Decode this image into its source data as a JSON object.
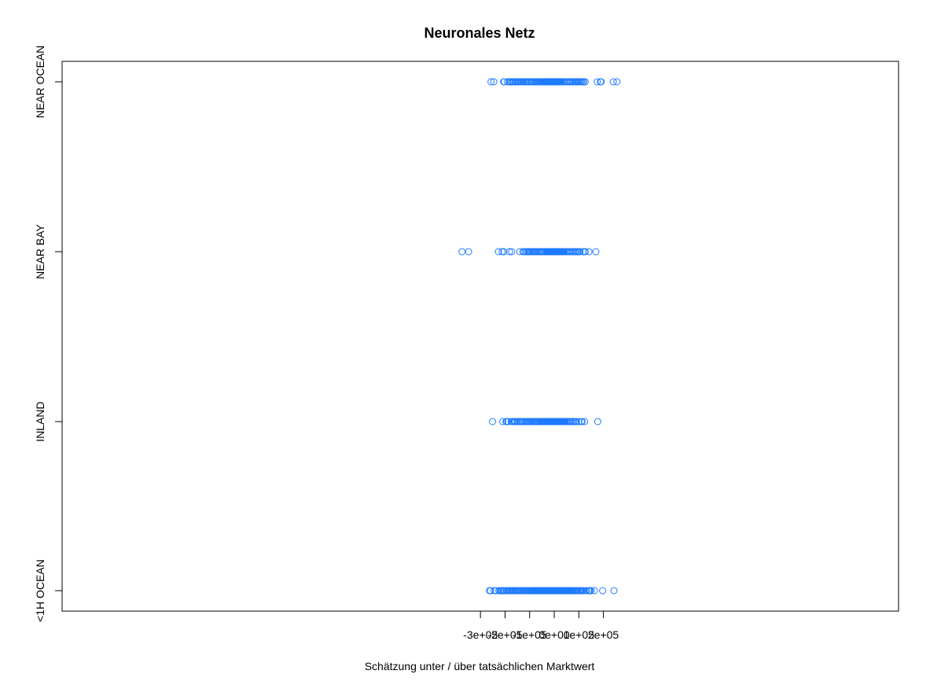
{
  "chart_data": {
    "type": "scatter",
    "title": "Neuronales Netz",
    "xlabel": "Schätzung unter / über tatsächlichen Marktwert",
    "ylabel": "",
    "xlim": [
      -400000,
      280000
    ],
    "x_ticks": [
      {
        "value": -300000,
        "label": "-3e+05"
      },
      {
        "value": -200000,
        "label": "-2e+05"
      },
      {
        "value": -100000,
        "label": "-1e+05"
      },
      {
        "value": 0,
        "label": "0e+00"
      },
      {
        "value": 100000,
        "label": "1e+05"
      },
      {
        "value": 200000,
        "label": "2e+05"
      }
    ],
    "categories": [
      "<1H OCEAN",
      "INLAND",
      "NEAR BAY",
      "NEAR OCEAN"
    ],
    "marker_color": "#1e7bff",
    "series": [
      {
        "category": "NEAR OCEAN",
        "dense_range": [
          -40000,
          30000
        ],
        "x": [
          -257000,
          -246000,
          -206000,
          -203000,
          -190000,
          -183000,
          -178000,
          -173000,
          -170000,
          -165000,
          -160000,
          -158000,
          -151000,
          -148000,
          -145000,
          -140000,
          -136000,
          -132000,
          -128000,
          -124000,
          -118000,
          -114000,
          -110000,
          -105000,
          -100000,
          -95000,
          -90000,
          -85000,
          -80000,
          -76000,
          -72000,
          -68000,
          -63000,
          -58000,
          -54000,
          -50000,
          -46000,
          -43000,
          35000,
          40000,
          45000,
          50000,
          55000,
          60000,
          65000,
          70000,
          75000,
          80000,
          85000,
          89000,
          92000,
          97000,
          101000,
          106000,
          110000,
          115000,
          120000,
          126000,
          175000,
          188000,
          191000,
          240000,
          255000
        ]
      },
      {
        "category": "NEAR BAY",
        "dense_range": [
          -30000,
          40000
        ],
        "x": [
          -375000,
          -348000,
          -227000,
          -212000,
          -205000,
          -182000,
          -173000,
          -140000,
          -127000,
          -122000,
          -115000,
          -110000,
          -105000,
          -100000,
          -95000,
          -90000,
          -86000,
          -82000,
          -78000,
          -74000,
          -70000,
          -65000,
          -60000,
          -55000,
          -50000,
          -45000,
          -40000,
          -35000,
          45000,
          50000,
          55000,
          60000,
          65000,
          70000,
          75000,
          80000,
          85000,
          90000,
          95000,
          100000,
          105000,
          117000,
          124000,
          126000,
          141000,
          169000
        ]
      },
      {
        "category": "INLAND",
        "dense_range": [
          -55000,
          45000
        ],
        "x": [
          -251000,
          -209000,
          -196000,
          -193000,
          -188000,
          -175000,
          -171000,
          -165000,
          -161000,
          -158000,
          -150000,
          -145000,
          -140000,
          -136000,
          -132000,
          -128000,
          -120000,
          -115000,
          -110000,
          -106000,
          -102000,
          -98000,
          -93000,
          -88000,
          -84000,
          -80000,
          -76000,
          -72000,
          -68000,
          -64000,
          -60000,
          50000,
          55000,
          60000,
          65000,
          70000,
          75000,
          80000,
          85000,
          90000,
          100000,
          110000,
          113000,
          123000,
          177000
        ]
      },
      {
        "category": "<1H OCEAN",
        "dense_range": [
          -85000,
          75000
        ],
        "x": [
          -263000,
          -259000,
          -245000,
          -237000,
          -225000,
          -219000,
          -215000,
          -211000,
          -207000,
          -204000,
          -195000,
          -193000,
          -185000,
          -183000,
          -180000,
          -176000,
          -172000,
          -169000,
          -165000,
          -161000,
          -156000,
          -152000,
          -148000,
          -144000,
          -140000,
          -136000,
          -132000,
          -128000,
          -124000,
          -120000,
          -116000,
          -112000,
          -108000,
          -104000,
          -100000,
          -96000,
          -92000,
          -88000,
          80000,
          84000,
          88000,
          92000,
          96000,
          100000,
          104000,
          108000,
          111000,
          114000,
          119000,
          130000,
          131000,
          140000,
          142000,
          145000,
          150000,
          163000,
          197000,
          243000
        ]
      }
    ]
  }
}
